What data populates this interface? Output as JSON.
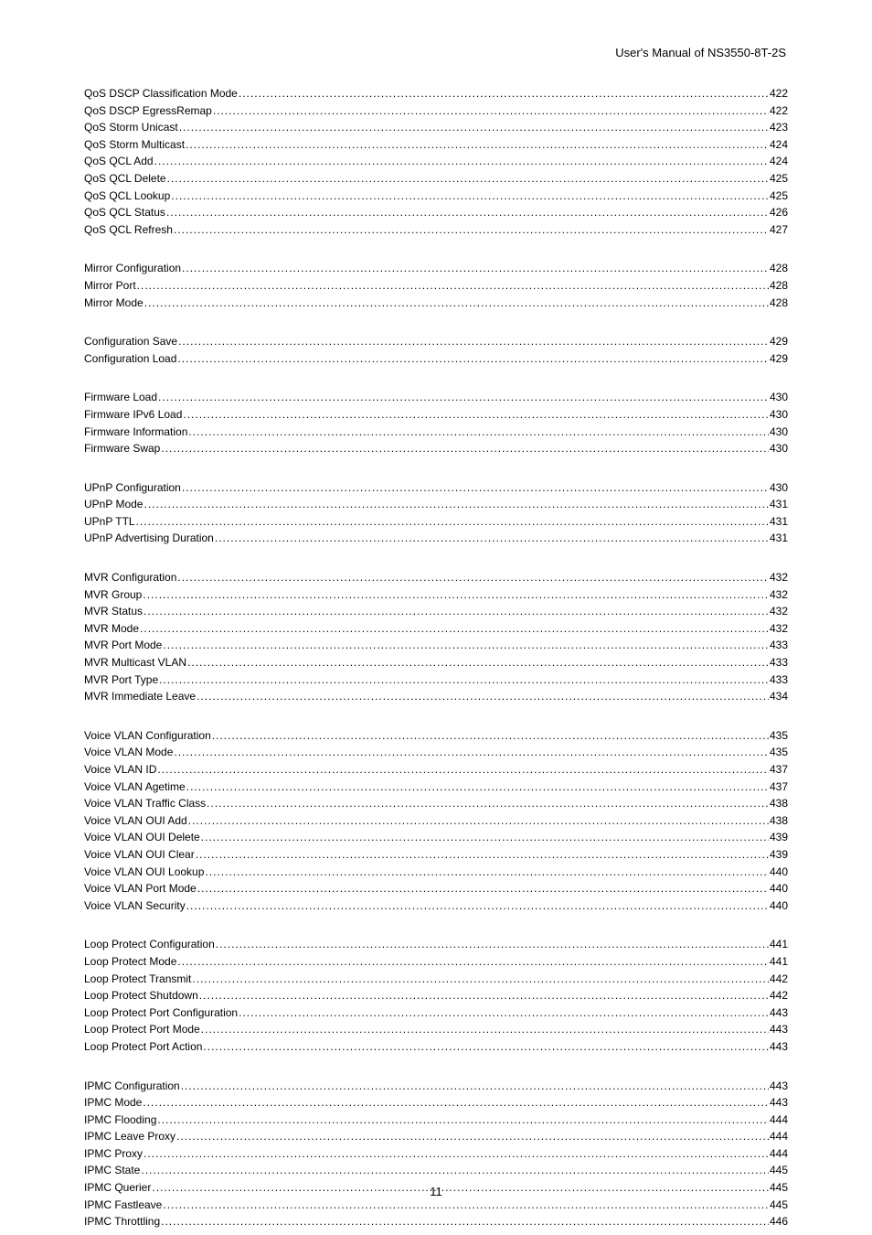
{
  "header": "User's  Manual  of  NS3550-8T-2S",
  "pageNumber": "11",
  "groups": [
    {
      "items": [
        {
          "label": "QoS DSCP Classification Mode",
          "page": "422"
        },
        {
          "label": "QoS DSCP EgressRemap",
          "page": "422"
        },
        {
          "label": "QoS Storm Unicast",
          "page": "423"
        },
        {
          "label": "QoS Storm Multicast",
          "page": "424"
        },
        {
          "label": "QoS QCL Add",
          "page": "424"
        },
        {
          "label": "QoS QCL Delete",
          "page": "425"
        },
        {
          "label": "QoS QCL Lookup",
          "page": "425"
        },
        {
          "label": "QoS QCL Status",
          "page": "426"
        },
        {
          "label": "QoS QCL Refresh",
          "page": "427"
        }
      ]
    },
    {
      "items": [
        {
          "label": "Mirror Configuration",
          "page": "428"
        },
        {
          "label": "Mirror Port",
          "page": "428"
        },
        {
          "label": "Mirror Mode",
          "page": "428"
        }
      ]
    },
    {
      "items": [
        {
          "label": "Configuration Save",
          "page": "429"
        },
        {
          "label": "Configuration Load",
          "page": "429"
        }
      ]
    },
    {
      "items": [
        {
          "label": "Firmware Load",
          "page": "430"
        },
        {
          "label": "Firmware IPv6 Load",
          "page": "430"
        },
        {
          "label": "Firmware Information",
          "page": "430"
        },
        {
          "label": "Firmware Swap",
          "page": "430"
        }
      ]
    },
    {
      "items": [
        {
          "label": "UPnP Configuration",
          "page": "430"
        },
        {
          "label": "UPnP Mode",
          "page": "431"
        },
        {
          "label": "UPnP TTL",
          "page": "431"
        },
        {
          "label": "UPnP Advertising Duration",
          "page": "431"
        }
      ]
    },
    {
      "items": [
        {
          "label": "MVR Configuration",
          "page": "432"
        },
        {
          "label": "MVR Group",
          "page": "432"
        },
        {
          "label": "MVR Status",
          "page": "432"
        },
        {
          "label": "MVR Mode",
          "page": "432"
        },
        {
          "label": "MVR Port Mode",
          "page": "433"
        },
        {
          "label": "MVR Multicast VLAN",
          "page": "433"
        },
        {
          "label": "MVR Port Type",
          "page": "433"
        },
        {
          "label": "MVR Immediate Leave",
          "page": "434"
        }
      ]
    },
    {
      "items": [
        {
          "label": "Voice VLAN Configuration",
          "page": "435"
        },
        {
          "label": "Voice VLAN Mode",
          "page": "435"
        },
        {
          "label": "Voice VLAN ID",
          "page": "437"
        },
        {
          "label": "Voice VLAN Agetime",
          "page": "437"
        },
        {
          "label": "Voice VLAN Traffic Class",
          "page": "438"
        },
        {
          "label": "Voice VLAN OUI Add",
          "page": "438"
        },
        {
          "label": "Voice VLAN OUI Delete",
          "page": "439"
        },
        {
          "label": "Voice VLAN OUI Clear",
          "page": "439"
        },
        {
          "label": "Voice VLAN OUI Lookup",
          "page": "440"
        },
        {
          "label": "Voice VLAN Port Mode",
          "page": "440"
        },
        {
          "label": "Voice VLAN Security",
          "page": "440"
        }
      ]
    },
    {
      "items": [
        {
          "label": "Loop Protect Configuration",
          "page": "441"
        },
        {
          "label": "Loop Protect Mode",
          "page": "441"
        },
        {
          "label": "Loop Protect Transmit",
          "page": "442"
        },
        {
          "label": "Loop Protect Shutdown",
          "page": "442"
        },
        {
          "label": "Loop Protect Port Configuration",
          "page": "443"
        },
        {
          "label": "Loop Protect Port Mode",
          "page": "443"
        },
        {
          "label": "Loop Protect Port Action",
          "page": "443"
        }
      ]
    },
    {
      "items": [
        {
          "label": "IPMC Configuration",
          "page": "443"
        },
        {
          "label": "IPMC Mode",
          "page": "443"
        },
        {
          "label": "IPMC Flooding",
          "page": "444"
        },
        {
          "label": "IPMC Leave Proxy",
          "page": "444"
        },
        {
          "label": "IPMC Proxy",
          "page": "444"
        },
        {
          "label": "IPMC State",
          "page": "445"
        },
        {
          "label": "IPMC Querier",
          "page": "445"
        },
        {
          "label": "IPMC Fastleave",
          "page": "445"
        },
        {
          "label": "IPMC Throttling",
          "page": "446"
        }
      ]
    }
  ]
}
